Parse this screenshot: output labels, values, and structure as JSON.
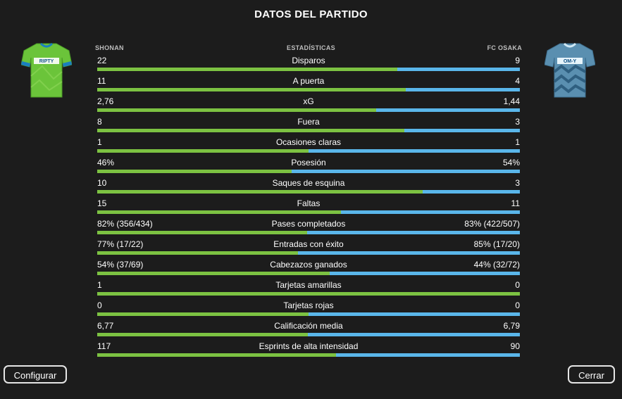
{
  "title": "DATOS DEL PARTIDO",
  "home_team": {
    "name": "SHONAN",
    "kit_sponsor": "RIPTY",
    "kit_color": "#6bc43a",
    "kit_trim": "#1a7fbf"
  },
  "away_team": {
    "name": "FC OSAKA",
    "kit_sponsor": "OM-Y",
    "kit_color": "#5a8fb0",
    "kit_trim": "#cfe8f5"
  },
  "center_header": "ESTADÍSTICAS",
  "colors": {
    "home_bar": "#7cc242",
    "away_bar": "#5ab6ea",
    "background": "#1c1c1c"
  },
  "stats": [
    {
      "label": "Disparos",
      "home": "22",
      "away": "9",
      "home_share": 0.71
    },
    {
      "label": "A puerta",
      "home": "11",
      "away": "4",
      "home_share": 0.73
    },
    {
      "label": "xG",
      "home": "2,76",
      "away": "1,44",
      "home_share": 0.66
    },
    {
      "label": "Fuera",
      "home": "8",
      "away": "3",
      "home_share": 0.727
    },
    {
      "label": "Ocasiones claras",
      "home": "1",
      "away": "1",
      "home_share": 0.5
    },
    {
      "label": "Posesión",
      "home": "46%",
      "away": "54%",
      "home_share": 0.46
    },
    {
      "label": "Saques de esquina",
      "home": "10",
      "away": "3",
      "home_share": 0.77
    },
    {
      "label": "Faltas",
      "home": "15",
      "away": "11",
      "home_share": 0.577
    },
    {
      "label": "Pases completados",
      "home": "82% (356/434)",
      "away": "83% (422/507)",
      "home_share": 0.497
    },
    {
      "label": "Entradas con éxito",
      "home": "77% (17/22)",
      "away": "85% (17/20)",
      "home_share": 0.475
    },
    {
      "label": "Cabezazos ganados",
      "home": "54% (37/69)",
      "away": "44% (32/72)",
      "home_share": 0.55
    },
    {
      "label": "Tarjetas amarillas",
      "home": "1",
      "away": "0",
      "home_share": 1.0
    },
    {
      "label": "Tarjetas rojas",
      "home": "0",
      "away": "0",
      "home_share": 0.5
    },
    {
      "label": "Calificación media",
      "home": "6,77",
      "away": "6,79",
      "home_share": 0.499
    },
    {
      "label": "Esprints de alta intensidad",
      "home": "117",
      "away": "90",
      "home_share": 0.565
    }
  ],
  "buttons": {
    "configure": "Configurar",
    "close": "Cerrar"
  }
}
